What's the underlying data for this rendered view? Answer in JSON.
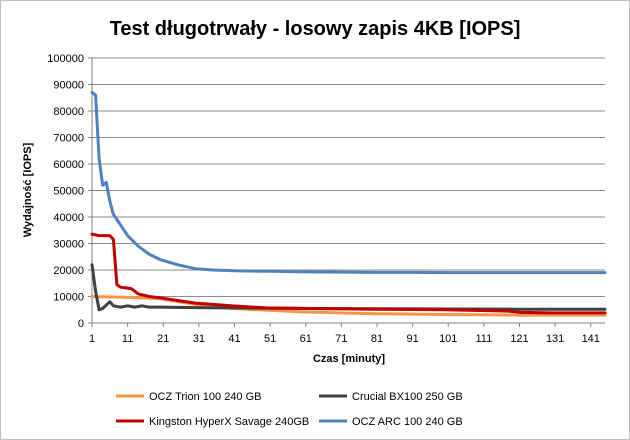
{
  "chart_data": {
    "type": "line",
    "title": "Test długotrwały - losowy zapis 4KB [IOPS]",
    "xlabel": "Czas [minuty]",
    "ylabel": "Wydajność [IOPS]",
    "xlim": [
      1,
      145
    ],
    "ylim": [
      0,
      100000
    ],
    "x_ticks": [
      1,
      11,
      21,
      31,
      41,
      51,
      61,
      71,
      81,
      91,
      101,
      111,
      121,
      131,
      141
    ],
    "y_ticks": [
      0,
      10000,
      20000,
      30000,
      40000,
      50000,
      60000,
      70000,
      80000,
      90000,
      100000
    ],
    "grid": "horizontal",
    "legend_position": "bottom",
    "series": [
      {
        "name": "OCZ Trion 100 240 GB",
        "color": "#f79646",
        "points": [
          [
            1,
            10000
          ],
          [
            10,
            9700
          ],
          [
            20,
            9200
          ],
          [
            30,
            7000
          ],
          [
            40,
            5500
          ],
          [
            60,
            4200
          ],
          [
            80,
            3500
          ],
          [
            100,
            3200
          ],
          [
            120,
            3000
          ],
          [
            140,
            3000
          ],
          [
            145,
            3000
          ]
        ]
      },
      {
        "name": "Crucial BX100 250 GB",
        "color": "#404040",
        "points": [
          [
            1,
            22000
          ],
          [
            2,
            12000
          ],
          [
            3,
            5000
          ],
          [
            4,
            5500
          ],
          [
            6,
            8000
          ],
          [
            7,
            6500
          ],
          [
            9,
            6000
          ],
          [
            11,
            6500
          ],
          [
            13,
            6000
          ],
          [
            15,
            6500
          ],
          [
            17,
            6000
          ],
          [
            20,
            6000
          ],
          [
            30,
            5800
          ],
          [
            50,
            5600
          ],
          [
            80,
            5400
          ],
          [
            100,
            5300
          ],
          [
            120,
            5200
          ],
          [
            145,
            5200
          ]
        ]
      },
      {
        "name": "Kingston HyperX Savage 240GB",
        "color": "#c00000",
        "points": [
          [
            1,
            33500
          ],
          [
            3,
            33000
          ],
          [
            6,
            33000
          ],
          [
            7,
            31500
          ],
          [
            8,
            14500
          ],
          [
            9,
            13500
          ],
          [
            12,
            13000
          ],
          [
            14,
            11000
          ],
          [
            17,
            10000
          ],
          [
            20,
            9500
          ],
          [
            25,
            8500
          ],
          [
            30,
            7500
          ],
          [
            35,
            7000
          ],
          [
            40,
            6500
          ],
          [
            50,
            5700
          ],
          [
            60,
            5500
          ],
          [
            80,
            5200
          ],
          [
            100,
            5000
          ],
          [
            110,
            4700
          ],
          [
            118,
            4500
          ],
          [
            121,
            4000
          ],
          [
            130,
            3800
          ],
          [
            145,
            3800
          ]
        ]
      },
      {
        "name": "OCZ ARC 100 240 GB",
        "color": "#4f81bd",
        "points": [
          [
            1,
            87000
          ],
          [
            2,
            86000
          ],
          [
            3,
            62000
          ],
          [
            4,
            52000
          ],
          [
            5,
            53000
          ],
          [
            6,
            46000
          ],
          [
            7,
            41000
          ],
          [
            9,
            37000
          ],
          [
            11,
            33000
          ],
          [
            14,
            29000
          ],
          [
            17,
            26000
          ],
          [
            20,
            24000
          ],
          [
            25,
            22000
          ],
          [
            30,
            20500
          ],
          [
            35,
            20000
          ],
          [
            41,
            19700
          ],
          [
            51,
            19500
          ],
          [
            61,
            19300
          ],
          [
            71,
            19200
          ],
          [
            81,
            19100
          ],
          [
            91,
            19100
          ],
          [
            101,
            19000
          ],
          [
            111,
            19000
          ],
          [
            121,
            19000
          ],
          [
            131,
            19000
          ],
          [
            145,
            19000
          ]
        ]
      }
    ]
  }
}
